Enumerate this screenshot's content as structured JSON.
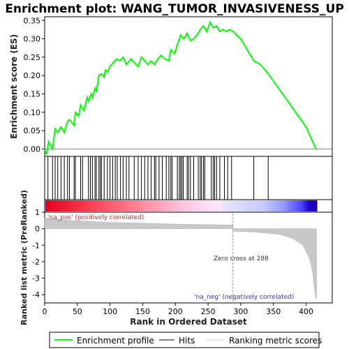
{
  "chart_data": [
    {
      "type": "line",
      "title": "Enrichment plot: WANG_TUMOR_INVASIVENESS_UP",
      "ylabel": "Enrichment score (ES)",
      "ylim": [
        -0.02,
        0.36
      ],
      "yticks": [
        "0.00",
        "0.05",
        "0.10",
        "0.15",
        "0.20",
        "0.25",
        "0.30",
        "0.35"
      ],
      "series": [
        {
          "name": "Enrichment profile",
          "color": "#00ff00",
          "x": [
            0,
            3,
            6,
            12,
            16,
            20,
            25,
            30,
            35,
            38,
            45,
            47,
            52,
            55,
            60,
            65,
            67,
            71,
            73,
            77,
            79,
            83,
            87,
            91,
            93,
            96,
            100,
            105,
            110,
            115,
            120,
            125,
            132,
            137,
            143,
            148,
            153,
            158,
            163,
            168,
            173,
            178,
            184,
            190,
            193,
            199,
            203,
            208,
            213,
            218,
            223,
            228,
            233,
            238,
            243,
            248,
            253,
            258,
            263,
            268,
            273,
            278,
            283,
            288,
            300,
            320,
            330,
            342,
            360,
            380,
            400,
            415
          ],
          "values": [
            0.0,
            -0.015,
            0.02,
            0.0,
            0.055,
            0.045,
            0.06,
            0.045,
            0.075,
            0.08,
            0.065,
            0.1,
            0.09,
            0.12,
            0.105,
            0.14,
            0.13,
            0.15,
            0.14,
            0.165,
            0.155,
            0.2,
            0.205,
            0.195,
            0.215,
            0.21,
            0.225,
            0.235,
            0.245,
            0.24,
            0.25,
            0.23,
            0.245,
            0.235,
            0.225,
            0.25,
            0.24,
            0.23,
            0.24,
            0.23,
            0.245,
            0.255,
            0.245,
            0.24,
            0.27,
            0.26,
            0.285,
            0.31,
            0.3,
            0.315,
            0.295,
            0.3,
            0.31,
            0.325,
            0.335,
            0.32,
            0.345,
            0.33,
            0.335,
            0.32,
            0.325,
            0.32,
            0.325,
            0.32,
            0.3,
            0.24,
            0.23,
            0.205,
            0.16,
            0.11,
            0.06,
            0.0
          ]
        }
      ],
      "hits": [
        5,
        12,
        16,
        20,
        25,
        30,
        35,
        38,
        45,
        47,
        55,
        58,
        67,
        70,
        73,
        77,
        79,
        83,
        85,
        87,
        91,
        96,
        100,
        104,
        108,
        111,
        116,
        120,
        125,
        129,
        137,
        143,
        148,
        153,
        158,
        163,
        168,
        170,
        175,
        180,
        186,
        190,
        193,
        195,
        203,
        206,
        208,
        210,
        212,
        218,
        220,
        223,
        228,
        235,
        238,
        240,
        243,
        245,
        255,
        258,
        260,
        263,
        268,
        275,
        280,
        286,
        320,
        342
      ]
    },
    {
      "type": "area",
      "ylabel": "Ranked list metric (PreRanked)",
      "xlabel": "Rank in Ordered Dataset",
      "xlim": [
        0,
        440
      ],
      "ylim": [
        -4.5,
        1
      ],
      "xticks": [
        "0",
        "50",
        "100",
        "150",
        "200",
        "250",
        "300",
        "350",
        "400"
      ],
      "yticks": [
        "1",
        "0",
        "-1",
        "-2",
        "-3",
        "-4"
      ],
      "x": [
        0,
        40,
        100,
        200,
        287,
        288,
        320,
        360,
        380,
        395,
        405,
        410,
        412,
        414,
        416
      ],
      "values": [
        0.65,
        0.5,
        0.38,
        0.28,
        0.22,
        -0.15,
        -0.2,
        -0.35,
        -0.6,
        -1.0,
        -1.8,
        -2.6,
        -3.4,
        -4.0,
        -4.3
      ],
      "zero_cross_rank": 288,
      "annotations": [
        "'na_pos' (positively correlated)",
        "Zero cross at 288",
        "'na_neg' (negatively correlated)"
      ]
    }
  ],
  "legend": {
    "items": [
      {
        "label": "Enrichment profile",
        "color": "#00ff00"
      },
      {
        "label": "Hits",
        "color": "#000000"
      },
      {
        "label": "Ranking metric scores",
        "color": "#cccccc"
      }
    ]
  }
}
